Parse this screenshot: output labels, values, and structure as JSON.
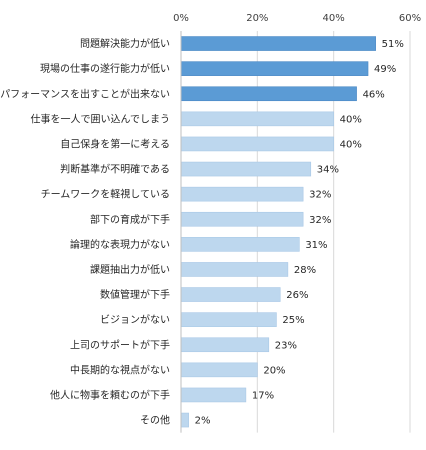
{
  "colors": {
    "highlight_bar": "#5b9bd5",
    "highlight_border": "#4a88c4",
    "normal_bar": "#bdd7ee",
    "normal_border": "#a9c8e6",
    "grid": "#d9d9d9",
    "axis": "#bfbfbf"
  },
  "chart_data": {
    "type": "bar",
    "orientation": "horizontal",
    "title": "",
    "xlabel": "",
    "ylabel": "",
    "xlim": [
      0,
      60
    ],
    "x_ticks": [
      "0%",
      "20%",
      "40%",
      "60%"
    ],
    "x_tick_values": [
      0,
      20,
      40,
      60
    ],
    "axis_position": "top",
    "grid": true,
    "legend": "none",
    "highlighted_count": 3,
    "categories": [
      "問題解決能力が低い",
      "現場の仕事の遂行能力が低い",
      "パフォーマンスを出すことが出来ない",
      "仕事を一人で囲い込んでしまう",
      "自己保身を第一に考える",
      "判断基準が不明確である",
      "チームワークを軽視している",
      "部下の育成が下手",
      "論理的な表現力がない",
      "課題抽出力が低い",
      "数値管理が下手",
      "ビジョンがない",
      "上司のサポートが下手",
      "中長期的な視点がない",
      "他人に物事を頼むのが下手",
      "その他"
    ],
    "values": [
      51,
      49,
      46,
      40,
      40,
      34,
      32,
      32,
      31,
      28,
      26,
      25,
      23,
      20,
      17,
      2
    ],
    "value_labels": [
      "51%",
      "49%",
      "46%",
      "40%",
      "40%",
      "34%",
      "32%",
      "32%",
      "31%",
      "28%",
      "26%",
      "25%",
      "23%",
      "20%",
      "17%",
      "2%"
    ]
  }
}
